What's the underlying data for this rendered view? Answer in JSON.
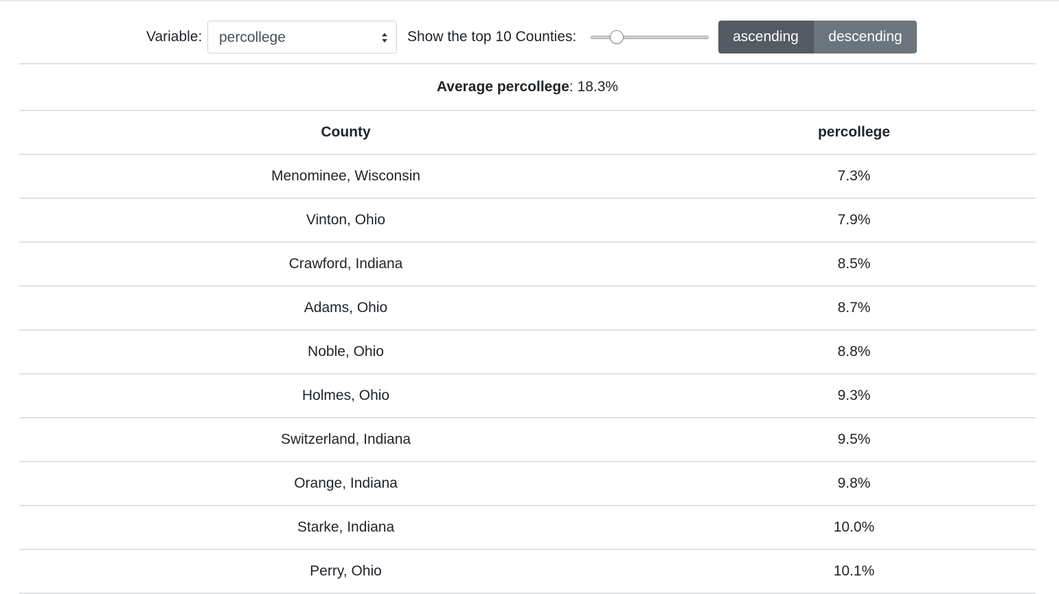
{
  "controls": {
    "variable_label": "Variable:",
    "selected_variable": "percollege",
    "top_label": "Show the top 10 Counties:",
    "slider_value": 10,
    "ascending_label": "ascending",
    "descending_label": "descending"
  },
  "summary": {
    "label": "Average percollege",
    "separator": ":",
    "value": "18.3%"
  },
  "table": {
    "columns": [
      "County",
      "percollege"
    ],
    "rows": [
      {
        "county": "Menominee, Wisconsin",
        "value": "7.3%"
      },
      {
        "county": "Vinton, Ohio",
        "value": "7.9%"
      },
      {
        "county": "Crawford, Indiana",
        "value": "8.5%"
      },
      {
        "county": "Adams, Ohio",
        "value": "8.7%"
      },
      {
        "county": "Noble, Ohio",
        "value": "8.8%"
      },
      {
        "county": "Holmes, Ohio",
        "value": "9.3%"
      },
      {
        "county": "Switzerland, Indiana",
        "value": "9.5%"
      },
      {
        "county": "Orange, Indiana",
        "value": "9.8%"
      },
      {
        "county": "Starke, Indiana",
        "value": "10.0%"
      },
      {
        "county": "Perry, Ohio",
        "value": "10.1%"
      }
    ]
  },
  "icons": {
    "select_arrows": "updown-chevron-icon"
  }
}
